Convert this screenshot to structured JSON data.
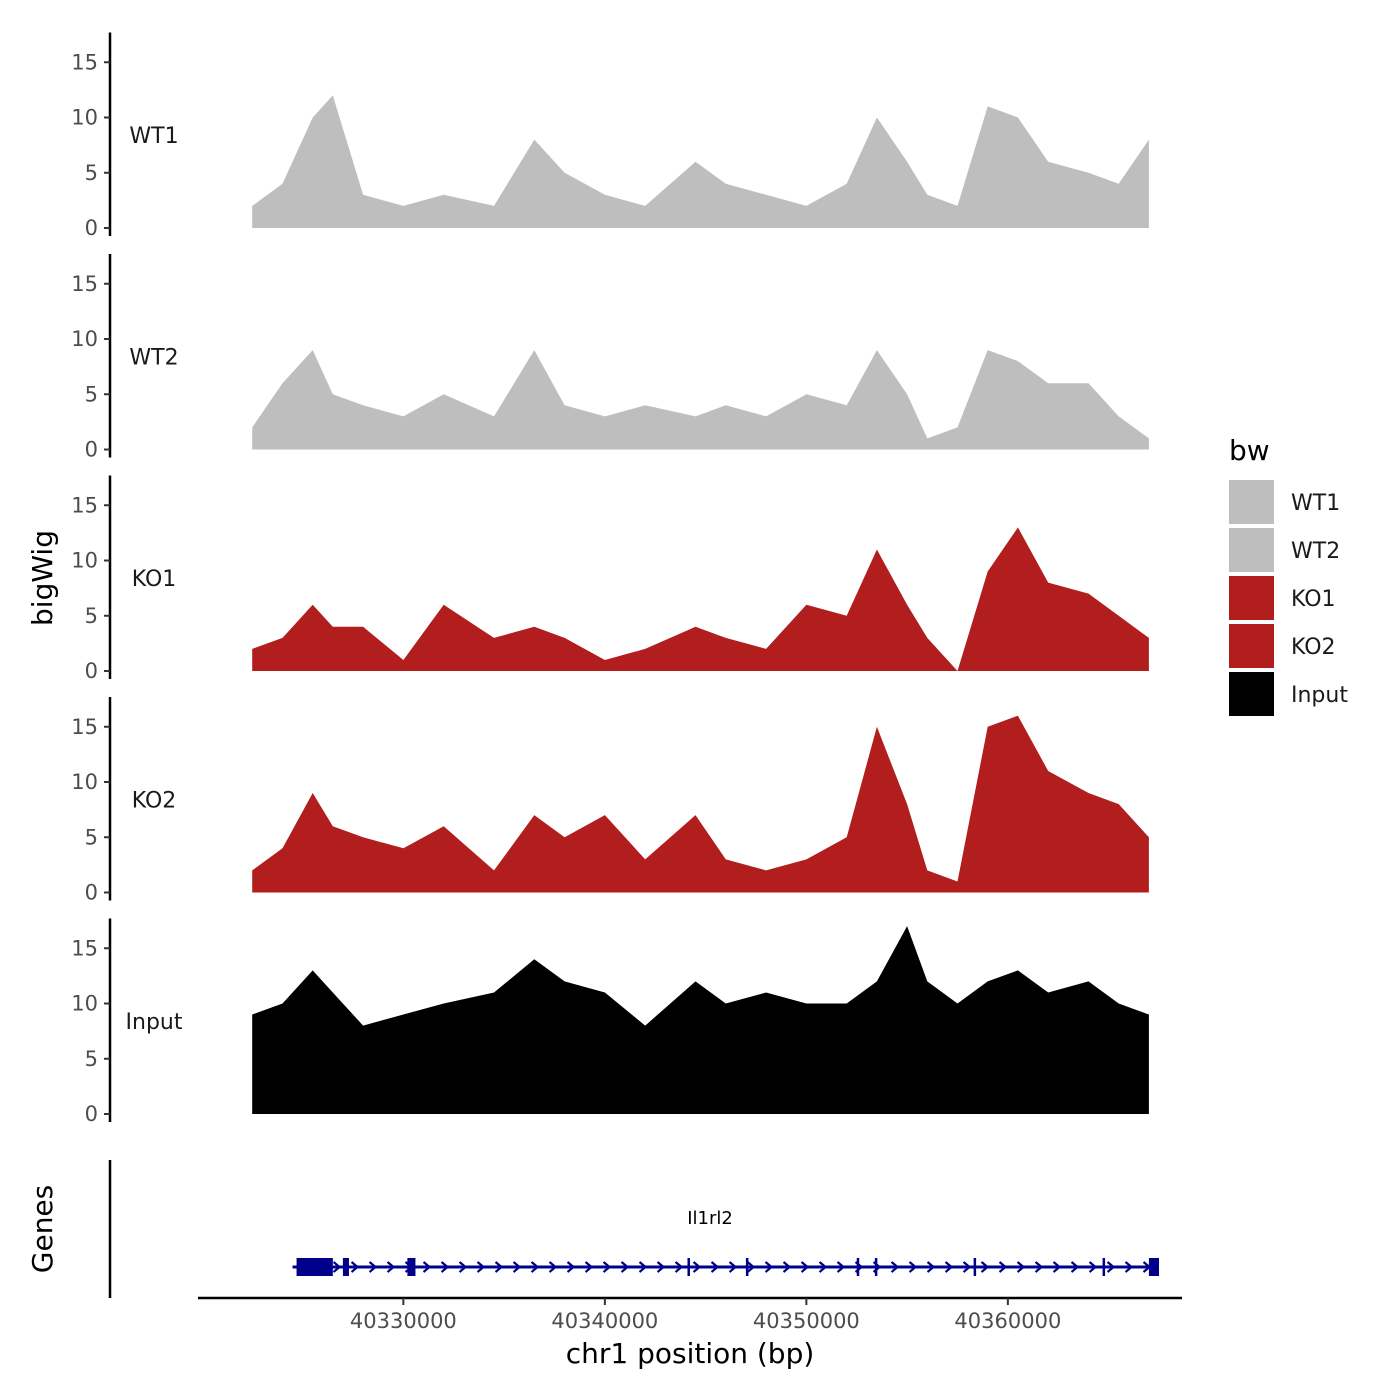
{
  "chart_data": {
    "type": "area",
    "title": "",
    "ylabel": "bigWig",
    "xlabel": "chr1 position (bp)",
    "xlim": [
      40321000,
      40367500
    ],
    "ylim": [
      0,
      18
    ],
    "grid": false,
    "y_ticks": [
      "0",
      "5",
      "10",
      "15"
    ],
    "y_tick_values": [
      0,
      5,
      10,
      15
    ],
    "x_ticks": [
      "40330000",
      "40340000",
      "40350000",
      "40360000"
    ],
    "x_tick_values": [
      40330000,
      40340000,
      40350000,
      40360000
    ],
    "x": [
      40322500,
      40324000,
      40325500,
      40326500,
      40328000,
      40330000,
      40332000,
      40334500,
      40336500,
      40338000,
      40340000,
      40342000,
      40344500,
      40346000,
      40348000,
      40350000,
      40352000,
      40353500,
      40355000,
      40356000,
      40357500,
      40359000,
      40360500,
      40362000,
      40364000,
      40365500,
      40367000
    ],
    "series": [
      {
        "name": "WT1",
        "color": "#bebebe",
        "values": [
          2,
          4,
          10,
          12,
          3,
          2,
          3,
          2,
          8,
          5,
          3,
          2,
          6,
          4,
          3,
          2,
          4,
          10,
          6,
          3,
          2,
          11,
          10,
          6,
          5,
          4,
          8
        ]
      },
      {
        "name": "WT2",
        "color": "#bebebe",
        "values": [
          2,
          6,
          9,
          5,
          4,
          3,
          5,
          3,
          9,
          4,
          3,
          4,
          3,
          4,
          3,
          5,
          4,
          9,
          5,
          1,
          2,
          9,
          8,
          6,
          6,
          3,
          1
        ]
      },
      {
        "name": "KO1",
        "color": "#b21d1d",
        "values": [
          2,
          3,
          6,
          4,
          4,
          1,
          6,
          3,
          4,
          3,
          1,
          2,
          4,
          3,
          2,
          6,
          5,
          11,
          6,
          3,
          0,
          9,
          13,
          8,
          7,
          5,
          3
        ]
      },
      {
        "name": "KO2",
        "color": "#b21d1d",
        "values": [
          2,
          4,
          9,
          6,
          5,
          4,
          6,
          2,
          7,
          5,
          7,
          3,
          7,
          3,
          2,
          3,
          5,
          15,
          8,
          2,
          1,
          15,
          16,
          11,
          9,
          8,
          5
        ]
      },
      {
        "name": "Input",
        "color": "#000000",
        "values": [
          9,
          10,
          13,
          11,
          8,
          9,
          10,
          11,
          14,
          12,
          11,
          8,
          12,
          10,
          11,
          10,
          10,
          12,
          17,
          12,
          10,
          12,
          13,
          11,
          12,
          10,
          9
        ]
      }
    ],
    "legend": {
      "title": "bw",
      "position": "right",
      "labels": [
        "WT1",
        "WT2",
        "KO1",
        "KO2",
        "Input"
      ]
    },
    "gene_track": {
      "title": "Genes",
      "gene_name": "Il1rl2",
      "strand": "+",
      "color": "#00008b",
      "start": 40324500,
      "end": 40367500,
      "exons": [
        [
          40324700,
          40326500
        ],
        [
          40327000,
          40327300
        ],
        [
          40330200,
          40330600
        ],
        [
          40344100,
          40344200
        ],
        [
          40347000,
          40347100
        ],
        [
          40352500,
          40352600
        ],
        [
          40353400,
          40353500
        ],
        [
          40358300,
          40358400
        ],
        [
          40364700,
          40364800
        ],
        [
          40367000,
          40367500
        ]
      ]
    }
  }
}
